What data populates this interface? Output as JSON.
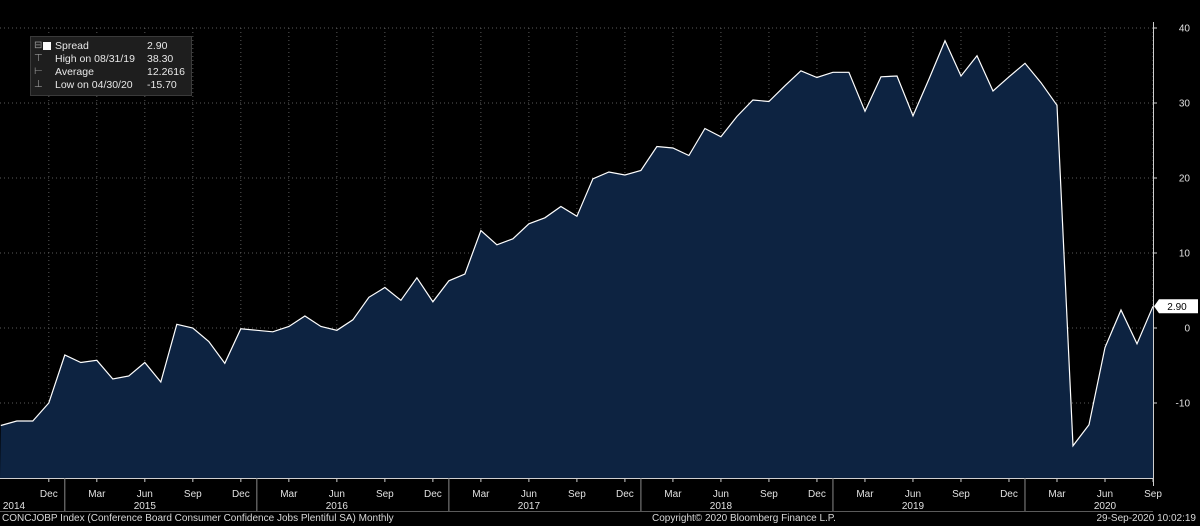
{
  "legend": {
    "series_label": "Spread",
    "series_value": "2.90",
    "high_label": "High on 08/31/19",
    "high_value": "38.30",
    "average_label": "Average",
    "average_value": "12.2616",
    "low_label": "Low on 04/30/20",
    "low_value": "-15.70"
  },
  "footer": {
    "left": "CONCJOBP Index (Conference Board Consumer Confidence Jobs Plentiful SA)  Monthly",
    "center": "Copyright© 2020 Bloomberg Finance L.P.",
    "right": "29-Sep-2020 10:02:19"
  },
  "last_value_label": "2.90",
  "chart_data": {
    "type": "area",
    "title": "",
    "xlabel": "",
    "ylabel": "",
    "ylim": [
      -20,
      40
    ],
    "yticks": [
      -10,
      0,
      10,
      20,
      30,
      40
    ],
    "grid": true,
    "colors": {
      "background": "#000000",
      "fill": "#0d2341",
      "line": "#ffffff",
      "grid": "#5a5a5a"
    },
    "x_start": "2014-09",
    "x_end": "2020-09",
    "month_ticks": [
      {
        "date": "2014-12",
        "label": "Dec"
      },
      {
        "date": "2015-03",
        "label": "Mar"
      },
      {
        "date": "2015-06",
        "label": "Jun"
      },
      {
        "date": "2015-09",
        "label": "Sep"
      },
      {
        "date": "2015-12",
        "label": "Dec"
      },
      {
        "date": "2016-03",
        "label": "Mar"
      },
      {
        "date": "2016-06",
        "label": "Jun"
      },
      {
        "date": "2016-09",
        "label": "Sep"
      },
      {
        "date": "2016-12",
        "label": "Dec"
      },
      {
        "date": "2017-03",
        "label": "Mar"
      },
      {
        "date": "2017-06",
        "label": "Jun"
      },
      {
        "date": "2017-09",
        "label": "Sep"
      },
      {
        "date": "2017-12",
        "label": "Dec"
      },
      {
        "date": "2018-03",
        "label": "Mar"
      },
      {
        "date": "2018-06",
        "label": "Jun"
      },
      {
        "date": "2018-09",
        "label": "Sep"
      },
      {
        "date": "2018-12",
        "label": "Dec"
      },
      {
        "date": "2019-03",
        "label": "Mar"
      },
      {
        "date": "2019-06",
        "label": "Jun"
      },
      {
        "date": "2019-09",
        "label": "Sep"
      },
      {
        "date": "2019-12",
        "label": "Dec"
      },
      {
        "date": "2020-03",
        "label": "Mar"
      },
      {
        "date": "2020-06",
        "label": "Jun"
      },
      {
        "date": "2020-09",
        "label": "Sep"
      }
    ],
    "year_labels": [
      {
        "date": "2014-09",
        "label": "2014"
      },
      {
        "date": "2015-06",
        "label": "2015"
      },
      {
        "date": "2016-06",
        "label": "2016"
      },
      {
        "date": "2017-06",
        "label": "2017"
      },
      {
        "date": "2018-06",
        "label": "2018"
      },
      {
        "date": "2019-06",
        "label": "2019"
      },
      {
        "date": "2020-06",
        "label": "2020"
      }
    ],
    "year_dividers": [
      "2015-01",
      "2016-01",
      "2017-01",
      "2018-01",
      "2019-01",
      "2020-01"
    ],
    "series": [
      {
        "name": "Spread",
        "x": [
          "2014-09",
          "2014-10",
          "2014-11",
          "2014-12",
          "2015-01",
          "2015-02",
          "2015-03",
          "2015-04",
          "2015-05",
          "2015-06",
          "2015-07",
          "2015-08",
          "2015-09",
          "2015-10",
          "2015-11",
          "2015-12",
          "2016-01",
          "2016-02",
          "2016-03",
          "2016-04",
          "2016-05",
          "2016-06",
          "2016-07",
          "2016-08",
          "2016-09",
          "2016-10",
          "2016-11",
          "2016-12",
          "2017-01",
          "2017-02",
          "2017-03",
          "2017-04",
          "2017-05",
          "2017-06",
          "2017-07",
          "2017-08",
          "2017-09",
          "2017-10",
          "2017-11",
          "2017-12",
          "2018-01",
          "2018-02",
          "2018-03",
          "2018-04",
          "2018-05",
          "2018-06",
          "2018-07",
          "2018-08",
          "2018-09",
          "2018-10",
          "2018-11",
          "2018-12",
          "2019-01",
          "2019-02",
          "2019-03",
          "2019-04",
          "2019-05",
          "2019-06",
          "2019-07",
          "2019-08",
          "2019-09",
          "2019-10",
          "2019-11",
          "2019-12",
          "2020-01",
          "2020-02",
          "2020-03",
          "2020-04",
          "2020-05",
          "2020-06",
          "2020-07",
          "2020-08",
          "2020-09"
        ],
        "values": [
          -13.0,
          -12.4,
          -12.4,
          -10.0,
          -3.6,
          -4.6,
          -4.3,
          -6.8,
          -6.4,
          -4.6,
          -7.2,
          0.5,
          0.0,
          -1.8,
          -4.7,
          -0.1,
          -0.3,
          -0.5,
          0.2,
          1.6,
          0.2,
          -0.3,
          1.1,
          4.1,
          5.4,
          3.7,
          6.7,
          3.5,
          6.3,
          7.2,
          13.0,
          11.1,
          11.9,
          13.9,
          14.7,
          16.2,
          14.9,
          19.9,
          20.8,
          20.4,
          21.0,
          24.2,
          24.0,
          23.0,
          26.6,
          25.5,
          28.2,
          30.4,
          30.2,
          32.3,
          34.3,
          33.4,
          34.1,
          34.1,
          28.9,
          33.5,
          33.6,
          28.3,
          33.2,
          38.3,
          33.6,
          36.3,
          31.6,
          33.5,
          35.3,
          32.7,
          29.7,
          -15.7,
          -12.9,
          -2.6,
          2.4,
          -2.1,
          2.9
        ]
      }
    ]
  }
}
